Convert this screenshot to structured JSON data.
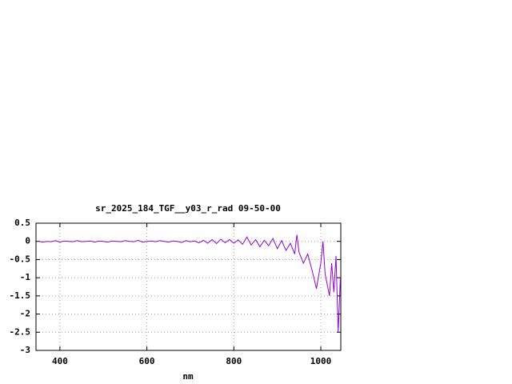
{
  "chart_data": {
    "type": "line",
    "title": "sr_2025_184_TGF__y03_r_rad 09-50-00",
    "x_label": "nm",
    "x": [
      350,
      360,
      370,
      380,
      390,
      400,
      410,
      420,
      430,
      440,
      450,
      460,
      470,
      480,
      490,
      500,
      510,
      520,
      530,
      540,
      550,
      560,
      570,
      580,
      590,
      600,
      610,
      620,
      630,
      640,
      650,
      660,
      670,
      680,
      690,
      700,
      710,
      720,
      730,
      740,
      750,
      760,
      770,
      780,
      790,
      800,
      810,
      820,
      830,
      840,
      850,
      860,
      870,
      880,
      890,
      900,
      910,
      920,
      930,
      940,
      945,
      950,
      960,
      970,
      980,
      990,
      1000,
      1005,
      1010,
      1020,
      1025,
      1030,
      1035,
      1040,
      1045
    ],
    "series": [
      {
        "color": "#9400d3",
        "values": [
          0.01,
          -0.02,
          0.0,
          -0.01,
          0.02,
          -0.02,
          0.01,
          0.0,
          -0.01,
          0.02,
          -0.01,
          0.0,
          0.01,
          -0.02,
          0.01,
          0.0,
          -0.02,
          0.01,
          0.0,
          -0.01,
          0.02,
          0.0,
          -0.01,
          0.03,
          -0.02,
          0.0,
          0.01,
          -0.01,
          0.02,
          0.0,
          -0.02,
          0.01,
          0.0,
          -0.03,
          0.02,
          -0.01,
          0.01,
          -0.04,
          0.03,
          -0.05,
          0.05,
          -0.06,
          0.06,
          -0.04,
          0.05,
          -0.05,
          0.04,
          -0.08,
          0.12,
          -0.1,
          0.05,
          -0.15,
          0.03,
          -0.12,
          0.08,
          -0.2,
          0.02,
          -0.25,
          -0.05,
          -0.35,
          0.18,
          -0.3,
          -0.6,
          -0.35,
          -0.8,
          -1.3,
          -0.6,
          0.0,
          -0.9,
          -1.5,
          -0.6,
          -1.4,
          -0.4,
          -2.5,
          -1.0
        ]
      }
    ],
    "xlim": [
      345,
      1046
    ],
    "xticks": [
      400,
      600,
      800,
      1000
    ],
    "ylim": [
      -3,
      0.5
    ],
    "yticks": [
      0.5,
      0,
      -0.5,
      -1,
      -1.5,
      -2,
      -2.5,
      -3
    ],
    "grid": true
  }
}
